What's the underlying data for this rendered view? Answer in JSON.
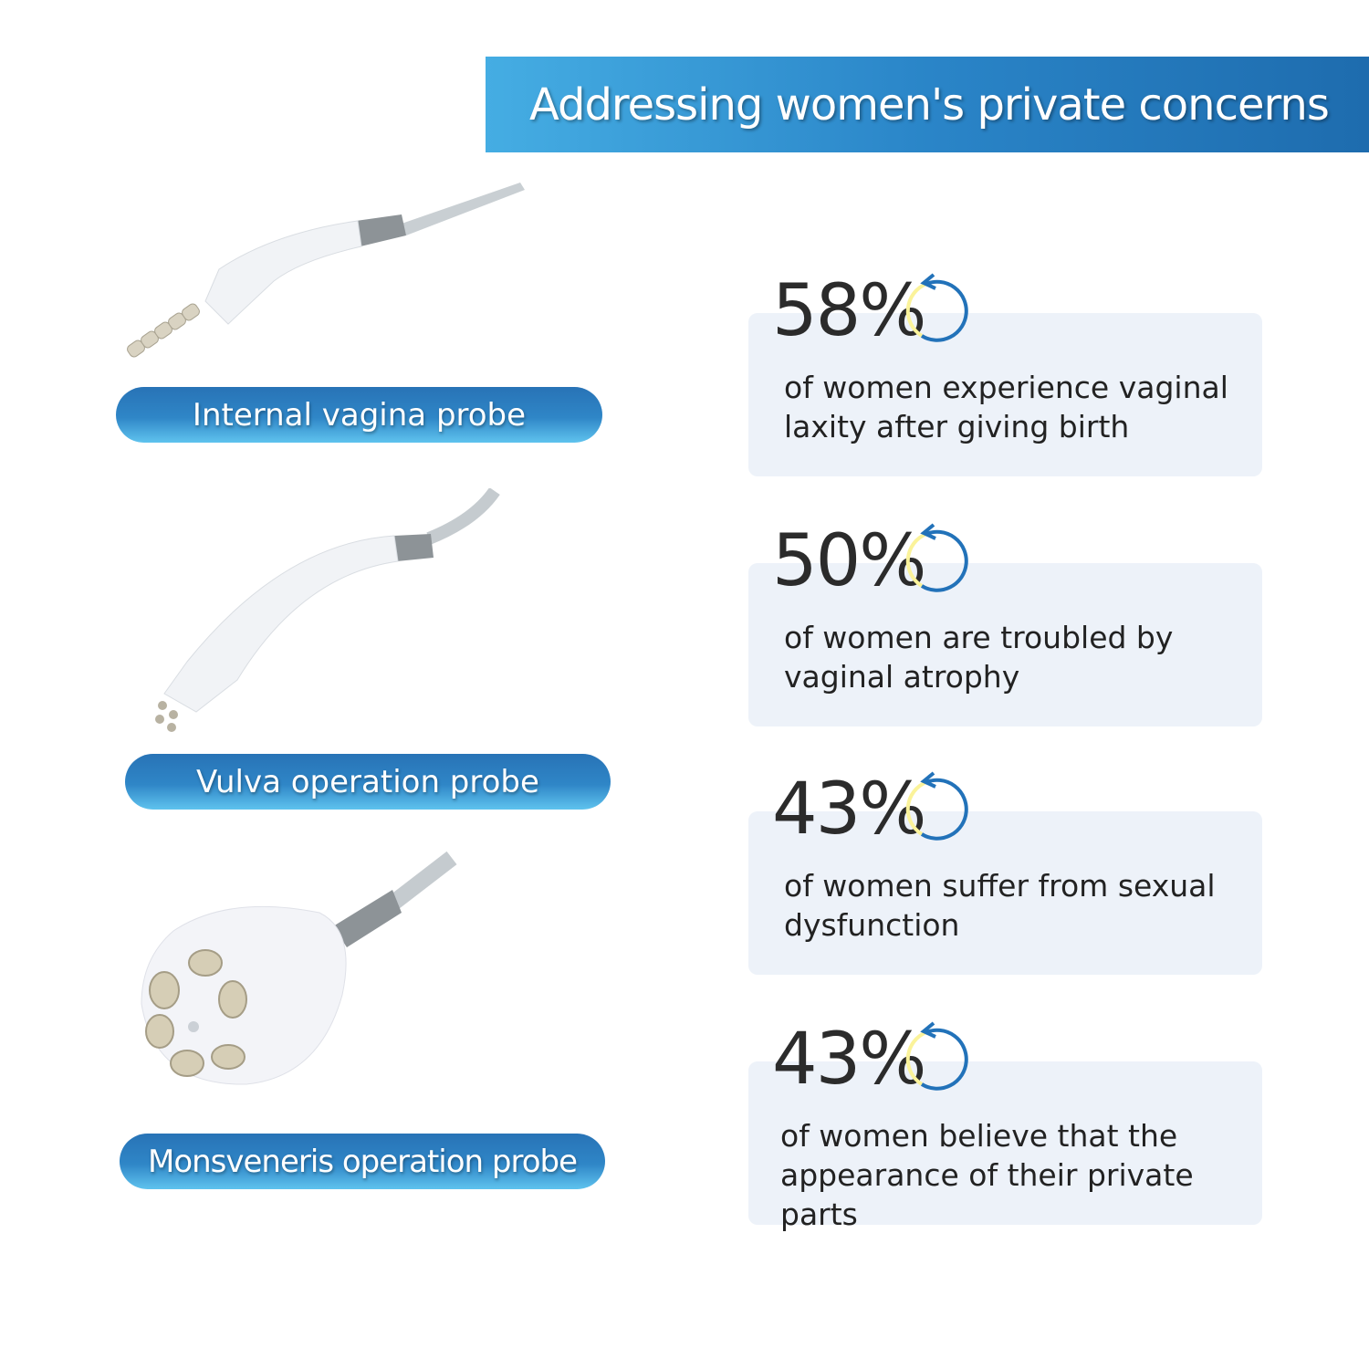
{
  "header": {
    "title": "Addressing women's private concerns"
  },
  "probes": [
    {
      "label": "Internal vagina probe"
    },
    {
      "label": "Vulva operation probe"
    },
    {
      "label": "Monsveneris operation probe"
    }
  ],
  "stats": [
    {
      "value": "58%",
      "text": "of women experience vaginal laxity after giving birth"
    },
    {
      "value": "50%",
      "text": "of women are troubled by vaginal atrophy"
    },
    {
      "value": "43%",
      "text": "of women suffer from sexual dysfunction"
    },
    {
      "value": "43%",
      "text": "of women believe that the appearance of their private parts"
    }
  ],
  "colors": {
    "accent": "#2a78b8",
    "card_bg": "#edf2f9",
    "cycle_blue": "#2272b9",
    "cycle_yellow": "#fbf39a"
  },
  "icons": {
    "stat": "cycle-arrow-icon"
  }
}
